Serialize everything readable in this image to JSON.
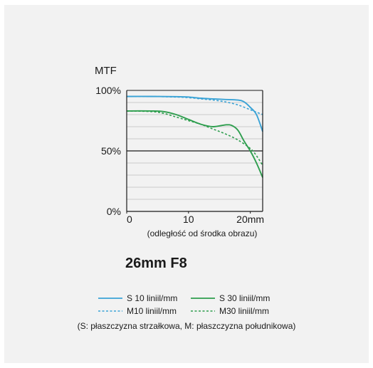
{
  "chart_data": {
    "type": "line",
    "title": "26mm F8",
    "ylabel": "MTF",
    "xlabel": "(odległość od środka obrazu)",
    "xlim": [
      0,
      22
    ],
    "ylim": [
      0,
      100
    ],
    "x_ticks": [
      {
        "value": 0,
        "label": "0"
      },
      {
        "value": 10,
        "label": "10"
      },
      {
        "value": 20,
        "label": "20mm"
      }
    ],
    "y_ticks": [
      {
        "value": 100,
        "label": "100%"
      },
      {
        "value": 50,
        "label": "50%"
      },
      {
        "value": 0,
        "label": "0%"
      }
    ],
    "grid": true,
    "series": [
      {
        "name": "S 10 liniil/mm",
        "color": "#3aa3d6",
        "dash": "solid",
        "x": [
          0,
          4,
          8,
          10,
          12,
          14,
          16,
          18,
          19,
          20,
          21,
          22
        ],
        "y": [
          95,
          95,
          94.8,
          94.5,
          93.5,
          93,
          92.5,
          92,
          90.5,
          86,
          80,
          66
        ]
      },
      {
        "name": "M10 liniil/mm",
        "color": "#3aa3d6",
        "dash": "dashed",
        "x": [
          0,
          4,
          8,
          10,
          12,
          14,
          16,
          18,
          20,
          21,
          22
        ],
        "y": [
          95,
          95,
          94.5,
          94,
          93,
          92,
          90.5,
          88,
          84,
          82,
          80
        ]
      },
      {
        "name": "S 30 liniil/mm",
        "color": "#2e9e4e",
        "dash": "solid",
        "x": [
          0,
          4,
          6,
          8,
          10,
          12,
          14,
          16,
          17,
          18,
          19,
          20,
          21,
          22
        ],
        "y": [
          83,
          83,
          82.5,
          80,
          76,
          72,
          70,
          71.5,
          71,
          67,
          58,
          50,
          40,
          28
        ]
      },
      {
        "name": "M30 liniil/mm",
        "color": "#2e9e4e",
        "dash": "dashed",
        "x": [
          0,
          4,
          6,
          8,
          10,
          12,
          14,
          16,
          18,
          20,
          21,
          22
        ],
        "y": [
          83,
          82.5,
          81,
          78,
          75,
          72,
          68,
          64,
          59,
          52,
          46,
          38
        ]
      }
    ],
    "legend": {
      "placement": "bottom",
      "note": "(S: płaszczyzna strzałkowa, M: płaszczyzna południkowa)"
    }
  }
}
